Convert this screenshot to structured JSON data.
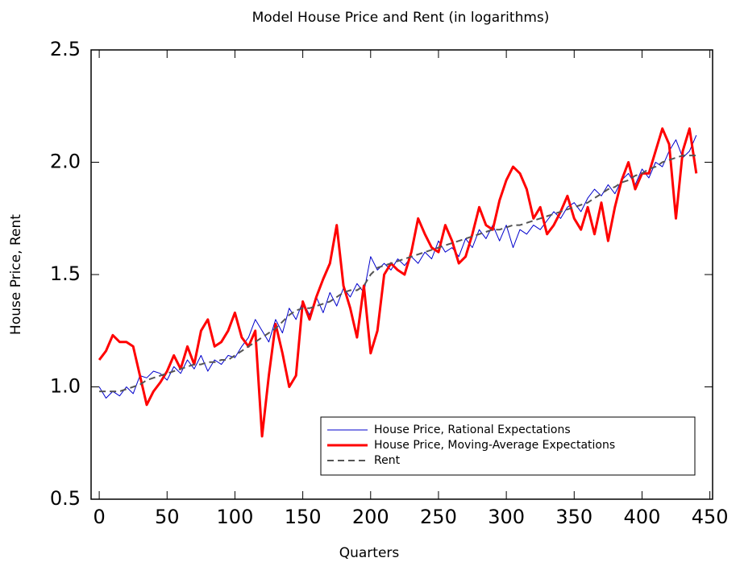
{
  "chart_data": {
    "type": "line",
    "title": "Model House Price and Rent (in logarithms)",
    "x_label": "Quarters",
    "y_label": "House Price, Rent",
    "xlim": [
      -6,
      452
    ],
    "ylim": [
      0.5,
      2.5
    ],
    "xticks": [
      0,
      50,
      100,
      150,
      200,
      250,
      300,
      350,
      400,
      450
    ],
    "yticks": [
      0.5,
      {
        "value": 1.0,
        "label": "1.0"
      },
      1.5,
      {
        "value": 2.0,
        "label": "2.0"
      },
      2.5
    ],
    "legend": "lower right",
    "x": [
      0,
      5,
      10,
      15,
      20,
      25,
      30,
      35,
      40,
      45,
      50,
      55,
      60,
      65,
      70,
      75,
      80,
      85,
      90,
      95,
      100,
      105,
      110,
      115,
      120,
      125,
      130,
      135,
      140,
      145,
      150,
      155,
      160,
      165,
      170,
      175,
      180,
      185,
      190,
      195,
      200,
      205,
      210,
      215,
      220,
      225,
      230,
      235,
      240,
      245,
      250,
      255,
      260,
      265,
      270,
      275,
      280,
      285,
      290,
      295,
      300,
      305,
      310,
      315,
      320,
      325,
      330,
      335,
      340,
      345,
      350,
      355,
      360,
      365,
      370,
      375,
      380,
      385,
      390,
      395,
      400,
      405,
      410,
      415,
      420,
      425,
      430,
      435,
      440
    ],
    "series": [
      {
        "name": "House Price, Rational Expectations",
        "color": "#0000cc",
        "width": 1,
        "style": "solid",
        "values": [
          1.0,
          0.95,
          0.98,
          0.96,
          1.0,
          0.97,
          1.05,
          1.04,
          1.07,
          1.06,
          1.03,
          1.09,
          1.06,
          1.12,
          1.08,
          1.14,
          1.07,
          1.12,
          1.1,
          1.14,
          1.13,
          1.18,
          1.22,
          1.3,
          1.25,
          1.2,
          1.3,
          1.24,
          1.35,
          1.3,
          1.38,
          1.32,
          1.4,
          1.33,
          1.42,
          1.36,
          1.44,
          1.4,
          1.46,
          1.42,
          1.58,
          1.52,
          1.55,
          1.52,
          1.57,
          1.54,
          1.58,
          1.55,
          1.6,
          1.57,
          1.65,
          1.6,
          1.62,
          1.58,
          1.66,
          1.62,
          1.7,
          1.66,
          1.72,
          1.65,
          1.72,
          1.62,
          1.7,
          1.68,
          1.72,
          1.7,
          1.74,
          1.78,
          1.75,
          1.8,
          1.82,
          1.78,
          1.84,
          1.88,
          1.85,
          1.9,
          1.86,
          1.92,
          1.95,
          1.9,
          1.97,
          1.93,
          2.0,
          1.98,
          2.05,
          2.1,
          2.02,
          2.05,
          2.12
        ]
      },
      {
        "name": "House Price, Moving-Average Expectations",
        "color": "#ff0000",
        "width": 3,
        "style": "solid",
        "values": [
          1.12,
          1.16,
          1.23,
          1.2,
          1.2,
          1.18,
          1.05,
          0.92,
          0.98,
          1.02,
          1.07,
          1.14,
          1.08,
          1.18,
          1.1,
          1.25,
          1.3,
          1.18,
          1.2,
          1.25,
          1.33,
          1.22,
          1.18,
          1.25,
          0.78,
          1.05,
          1.28,
          1.15,
          1.0,
          1.05,
          1.38,
          1.3,
          1.4,
          1.48,
          1.55,
          1.72,
          1.45,
          1.35,
          1.22,
          1.45,
          1.15,
          1.25,
          1.5,
          1.55,
          1.52,
          1.5,
          1.6,
          1.75,
          1.68,
          1.62,
          1.6,
          1.72,
          1.65,
          1.55,
          1.58,
          1.68,
          1.8,
          1.72,
          1.7,
          1.83,
          1.92,
          1.98,
          1.95,
          1.88,
          1.75,
          1.8,
          1.68,
          1.72,
          1.78,
          1.85,
          1.75,
          1.7,
          1.8,
          1.68,
          1.82,
          1.65,
          1.8,
          1.92,
          2.0,
          1.88,
          1.95,
          1.95,
          2.05,
          2.15,
          2.08,
          1.75,
          2.05,
          2.15,
          1.95
        ]
      },
      {
        "name": "Rent",
        "color": "#555555",
        "width": 2,
        "style": "dashed",
        "values": [
          0.98,
          0.98,
          0.98,
          0.98,
          0.99,
          1.0,
          1.01,
          1.03,
          1.04,
          1.05,
          1.06,
          1.07,
          1.08,
          1.09,
          1.1,
          1.1,
          1.11,
          1.11,
          1.12,
          1.12,
          1.14,
          1.16,
          1.18,
          1.2,
          1.22,
          1.24,
          1.26,
          1.29,
          1.32,
          1.34,
          1.35,
          1.35,
          1.36,
          1.37,
          1.38,
          1.4,
          1.42,
          1.43,
          1.43,
          1.45,
          1.5,
          1.53,
          1.54,
          1.55,
          1.56,
          1.57,
          1.58,
          1.59,
          1.6,
          1.61,
          1.62,
          1.63,
          1.64,
          1.65,
          1.66,
          1.67,
          1.68,
          1.69,
          1.7,
          1.7,
          1.71,
          1.72,
          1.72,
          1.73,
          1.74,
          1.75,
          1.76,
          1.77,
          1.78,
          1.79,
          1.8,
          1.81,
          1.82,
          1.84,
          1.86,
          1.88,
          1.89,
          1.91,
          1.92,
          1.94,
          1.95,
          1.97,
          1.98,
          2.0,
          2.01,
          2.02,
          2.03,
          2.03,
          2.03
        ]
      }
    ]
  }
}
